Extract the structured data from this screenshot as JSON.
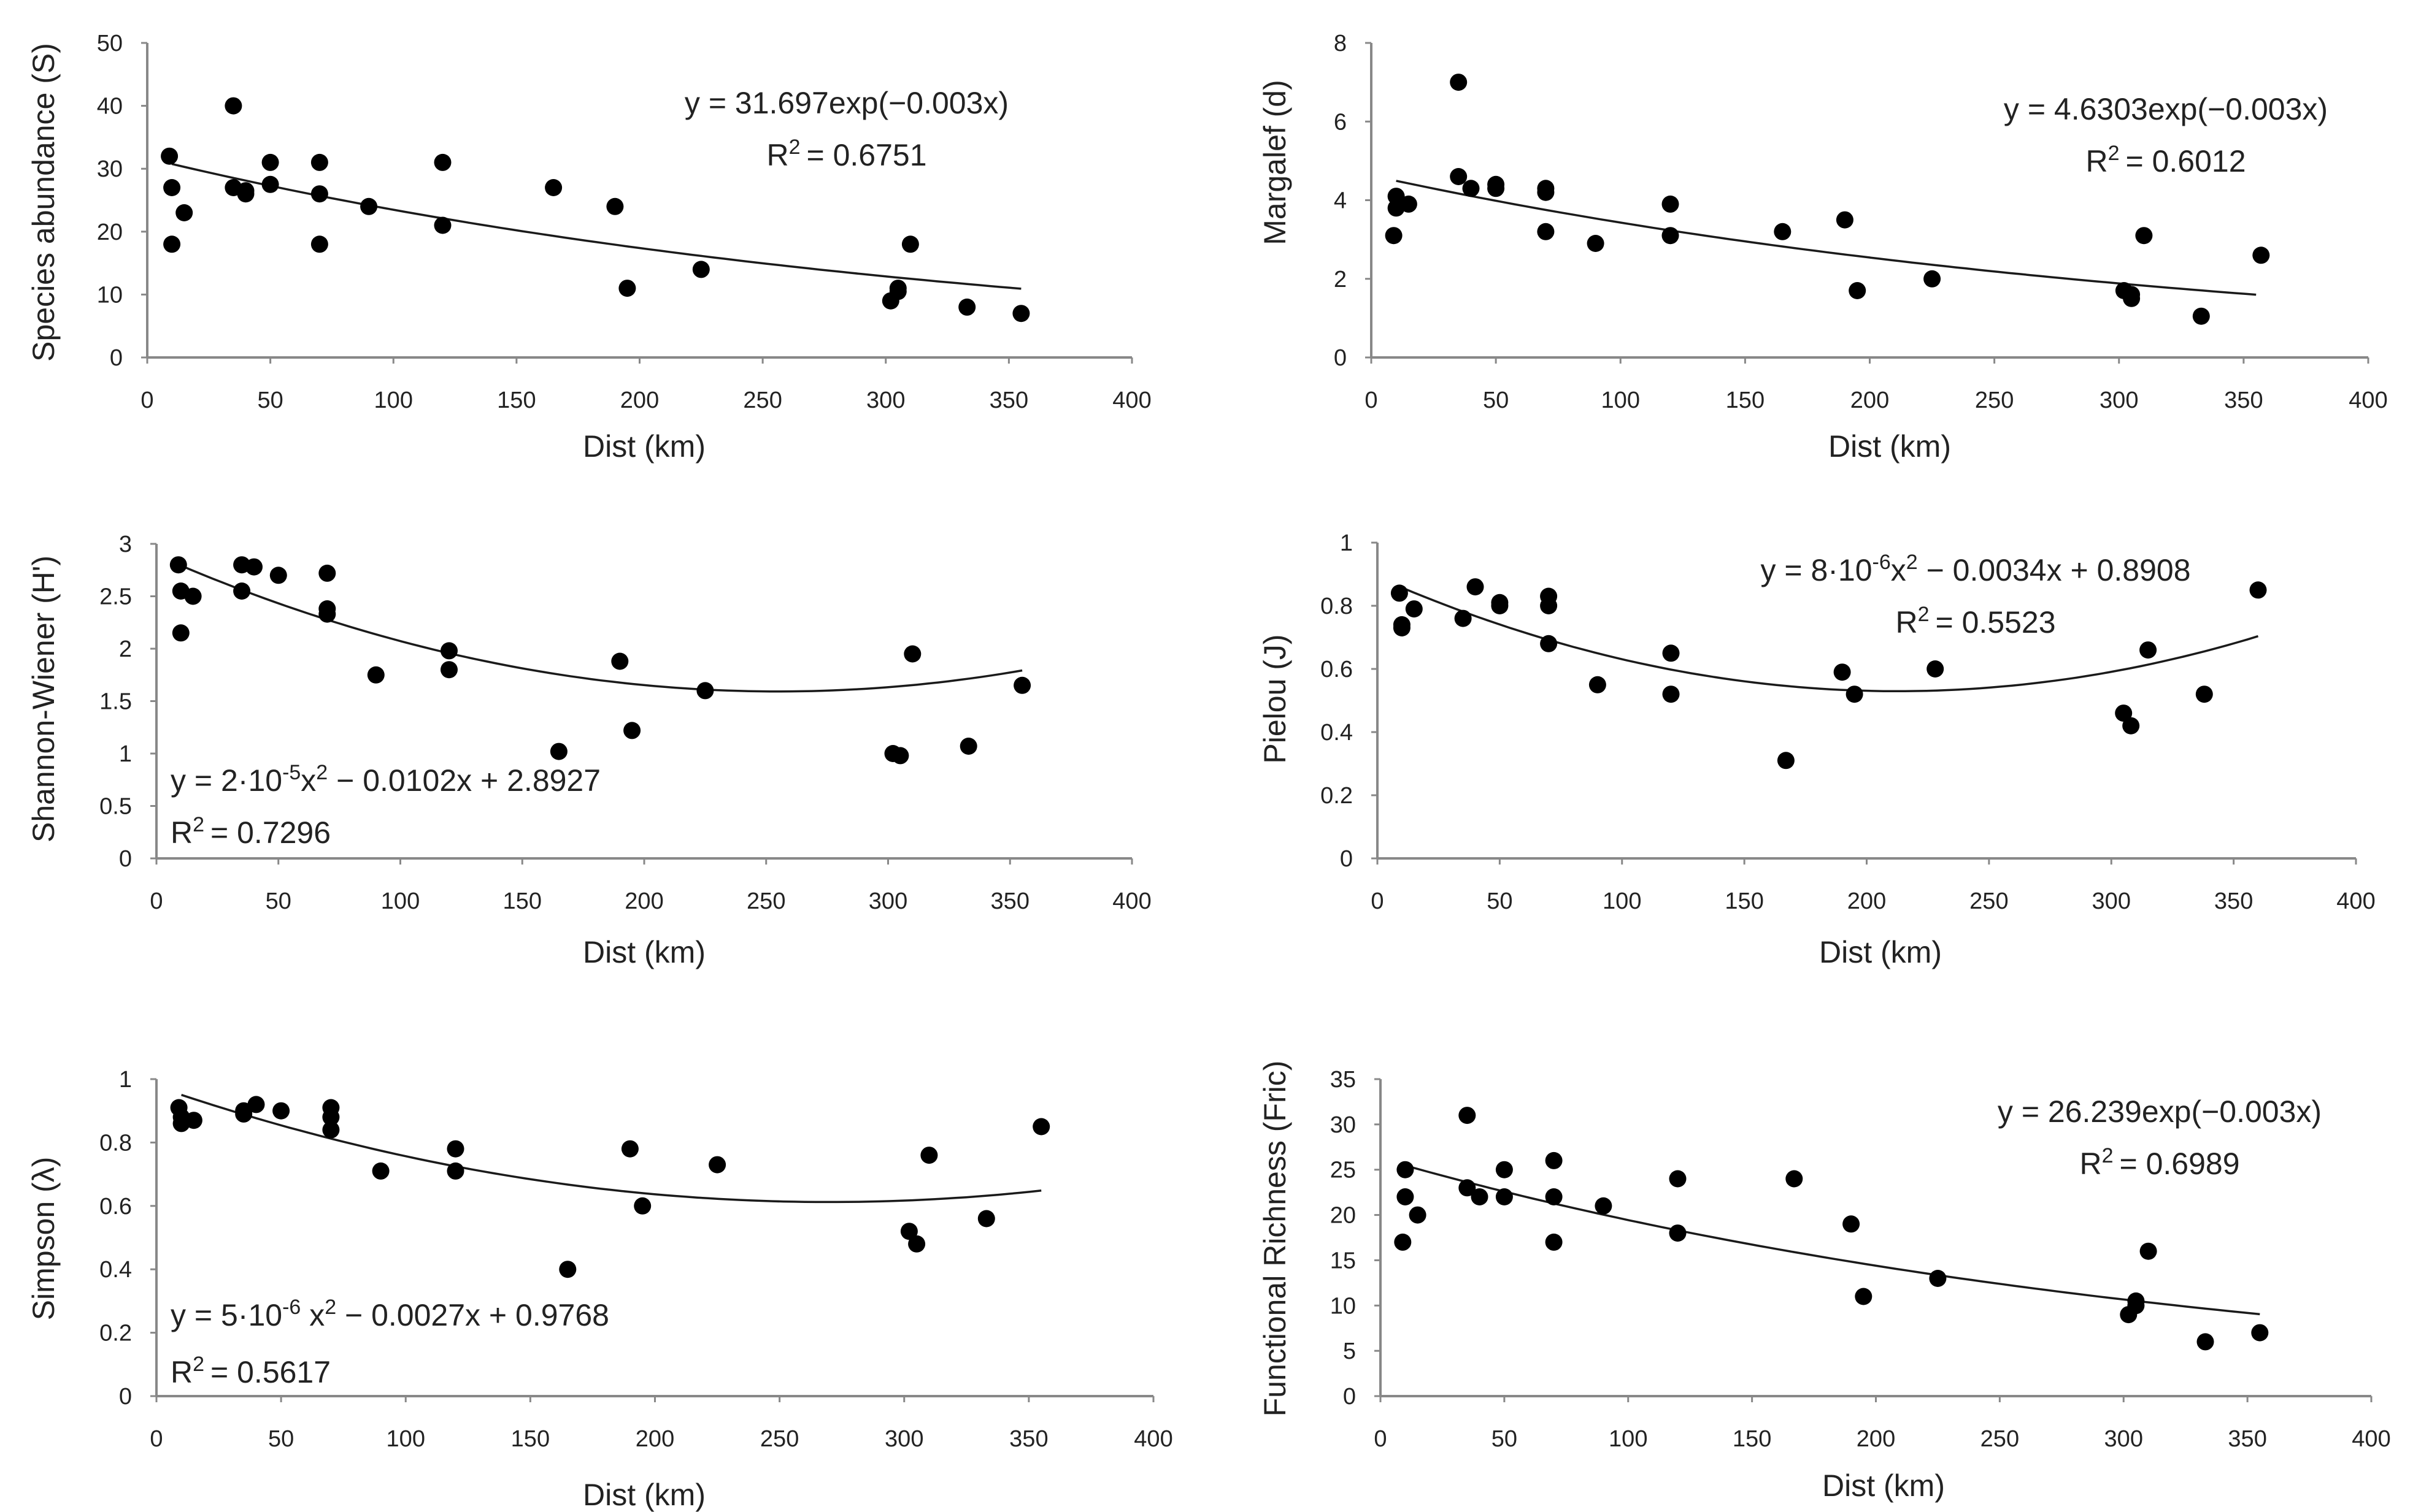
{
  "chart_data": [
    {
      "id": "species",
      "type": "scatter",
      "xlabel": "Dist (km)",
      "ylabel": "Species abundance (S)",
      "xlim": [
        0,
        400
      ],
      "ylim": [
        0,
        50
      ],
      "xticks": [
        0,
        50,
        100,
        150,
        200,
        250,
        300,
        350,
        400
      ],
      "yticks": [
        0,
        10,
        20,
        30,
        40,
        50
      ],
      "tick_decimals": 0,
      "equation": "y = 31.697exp(−0.003x)",
      "r2_label": "R",
      "r2_sup": "2",
      "r2_value": "= 0.6751",
      "fit": {
        "kind": "exp",
        "a": 31.697,
        "b": -0.003,
        "from": 10,
        "to": 355
      },
      "points": [
        [
          9,
          32
        ],
        [
          10,
          27
        ],
        [
          10,
          18
        ],
        [
          15,
          23
        ],
        [
          35,
          40
        ],
        [
          35,
          27
        ],
        [
          40,
          26.5
        ],
        [
          40,
          26
        ],
        [
          50,
          31
        ],
        [
          50,
          27.5
        ],
        [
          70,
          31
        ],
        [
          70,
          26
        ],
        [
          70,
          18
        ],
        [
          90,
          24
        ],
        [
          120,
          31
        ],
        [
          120,
          21
        ],
        [
          165,
          27
        ],
        [
          190,
          24
        ],
        [
          195,
          11
        ],
        [
          225,
          14
        ],
        [
          302,
          9
        ],
        [
          305,
          11
        ],
        [
          305,
          10.5
        ],
        [
          310,
          18
        ],
        [
          333,
          8
        ],
        [
          355,
          7
        ]
      ]
    },
    {
      "id": "margalef",
      "type": "scatter",
      "xlabel": "Dist (km)",
      "ylabel": "Margalef (d)",
      "xlim": [
        0,
        400
      ],
      "ylim": [
        0,
        8
      ],
      "xticks": [
        0,
        50,
        100,
        150,
        200,
        250,
        300,
        350,
        400
      ],
      "yticks": [
        0,
        2,
        4,
        6,
        8
      ],
      "tick_decimals": 0,
      "equation": "y = 4.6303exp(−0.003x)",
      "r2_label": "R",
      "r2_sup": "2",
      "r2_value": "= 0.6012",
      "fit": {
        "kind": "exp",
        "a": 4.6303,
        "b": -0.003,
        "from": 10,
        "to": 355
      },
      "points": [
        [
          9,
          3.1
        ],
        [
          10,
          4.1
        ],
        [
          10,
          3.8
        ],
        [
          15,
          3.9
        ],
        [
          35,
          7
        ],
        [
          35,
          4.6
        ],
        [
          40,
          4.3
        ],
        [
          50,
          4.4
        ],
        [
          50,
          4.3
        ],
        [
          70,
          4.2
        ],
        [
          70,
          4.3
        ],
        [
          70,
          3.2
        ],
        [
          90,
          2.9
        ],
        [
          120,
          3.9
        ],
        [
          120,
          3.1
        ],
        [
          165,
          3.2
        ],
        [
          190,
          3.5
        ],
        [
          195,
          1.7
        ],
        [
          225,
          2.0
        ],
        [
          302,
          1.7
        ],
        [
          305,
          1.6
        ],
        [
          305,
          1.5
        ],
        [
          310,
          3.1
        ],
        [
          333,
          1.05
        ],
        [
          357,
          2.6
        ]
      ]
    },
    {
      "id": "shannon",
      "type": "scatter",
      "xlabel": "Dist (km)",
      "ylabel": "Shannon-Wiener (H')",
      "xlim": [
        0,
        400
      ],
      "ylim": [
        0,
        3
      ],
      "xticks": [
        0,
        50,
        100,
        150,
        200,
        250,
        300,
        350,
        400
      ],
      "yticks": [
        0,
        0.5,
        1,
        1.5,
        2,
        2.5,
        3
      ],
      "tick_decimals": 1,
      "equation_parts": [
        "y = 2·10",
        "-5",
        "x",
        "2",
        " − 0.0102x + 2.8927"
      ],
      "r2_label": "R",
      "r2_sup": "2",
      "r2_value": "= 0.7296",
      "fit": {
        "kind": "poly2",
        "a": 2e-05,
        "b": -0.0102,
        "c": 2.8927,
        "from": 10,
        "to": 355
      },
      "points": [
        [
          9,
          2.8
        ],
        [
          10,
          2.55
        ],
        [
          10,
          2.15
        ],
        [
          15,
          2.5
        ],
        [
          35,
          2.8
        ],
        [
          35,
          2.55
        ],
        [
          40,
          2.78
        ],
        [
          50,
          2.7
        ],
        [
          70,
          2.72
        ],
        [
          70,
          2.38
        ],
        [
          70,
          2.33
        ],
        [
          90,
          1.75
        ],
        [
          120,
          1.98
        ],
        [
          120,
          1.8
        ],
        [
          165,
          1.02
        ],
        [
          190,
          1.88
        ],
        [
          195,
          1.22
        ],
        [
          225,
          1.6
        ],
        [
          302,
          1.0
        ],
        [
          305,
          0.98
        ],
        [
          310,
          1.95
        ],
        [
          333,
          1.07
        ],
        [
          355,
          1.65
        ]
      ]
    },
    {
      "id": "pielou",
      "type": "scatter",
      "xlabel": "Dist (km)",
      "ylabel": "Pielou (J)",
      "xlim": [
        0,
        400
      ],
      "ylim": [
        0,
        1
      ],
      "xticks": [
        0,
        50,
        100,
        150,
        200,
        250,
        300,
        350,
        400
      ],
      "yticks": [
        0,
        0.2,
        0.4,
        0.6,
        0.8,
        1
      ],
      "tick_decimals": 1,
      "equation_parts": [
        "y = 8·10",
        "-6",
        "x",
        "2",
        " − 0.0034x + 0.8908"
      ],
      "r2_label": "R",
      "r2_sup": "2",
      "r2_value": "= 0.5523",
      "fit": {
        "kind": "poly2",
        "a": 8e-06,
        "b": -0.0034,
        "c": 0.8908,
        "from": 10,
        "to": 360
      },
      "points": [
        [
          9,
          0.84
        ],
        [
          10,
          0.74
        ],
        [
          10,
          0.73
        ],
        [
          15,
          0.79
        ],
        [
          35,
          0.76
        ],
        [
          40,
          0.86
        ],
        [
          50,
          0.81
        ],
        [
          50,
          0.8
        ],
        [
          70,
          0.83
        ],
        [
          70,
          0.8
        ],
        [
          70,
          0.68
        ],
        [
          90,
          0.55
        ],
        [
          120,
          0.65
        ],
        [
          120,
          0.52
        ],
        [
          167,
          0.31
        ],
        [
          190,
          0.59
        ],
        [
          195,
          0.52
        ],
        [
          228,
          0.6
        ],
        [
          305,
          0.46
        ],
        [
          308,
          0.42
        ],
        [
          315,
          0.66
        ],
        [
          338,
          0.52
        ],
        [
          360,
          0.85
        ]
      ]
    },
    {
      "id": "simpson",
      "type": "scatter",
      "xlabel": "Dist (km)",
      "ylabel": "Simpson (λ)",
      "xlim": [
        0,
        400
      ],
      "ylim": [
        0,
        1
      ],
      "xticks": [
        0,
        50,
        100,
        150,
        200,
        250,
        300,
        350,
        400
      ],
      "yticks": [
        0,
        0.2,
        0.4,
        0.6,
        0.8,
        1
      ],
      "tick_decimals": 1,
      "equation_parts": [
        "y = 5·10",
        "-6",
        " x",
        "2",
        " − 0.0027x + 0.9768"
      ],
      "r2_label": "R",
      "r2_sup": "2",
      "r2_value": "= 0.5617",
      "fit": {
        "kind": "poly2",
        "a": 5e-06,
        "b": -0.0027,
        "c": 0.9768,
        "from": 10,
        "to": 355
      },
      "points": [
        [
          9,
          0.91
        ],
        [
          10,
          0.88
        ],
        [
          10,
          0.86
        ],
        [
          15,
          0.87
        ],
        [
          35,
          0.9
        ],
        [
          35,
          0.89
        ],
        [
          40,
          0.92
        ],
        [
          50,
          0.9
        ],
        [
          70,
          0.91
        ],
        [
          70,
          0.88
        ],
        [
          70,
          0.84
        ],
        [
          90,
          0.71
        ],
        [
          120,
          0.78
        ],
        [
          120,
          0.71
        ],
        [
          165,
          0.4
        ],
        [
          190,
          0.78
        ],
        [
          195,
          0.6
        ],
        [
          225,
          0.73
        ],
        [
          302,
          0.52
        ],
        [
          305,
          0.48
        ],
        [
          310,
          0.76
        ],
        [
          333,
          0.56
        ],
        [
          355,
          0.85
        ]
      ]
    },
    {
      "id": "fric",
      "type": "scatter",
      "xlabel": "Dist (km)",
      "ylabel": "Functional Richness (Fric)",
      "xlim": [
        0,
        400
      ],
      "ylim": [
        0,
        35
      ],
      "xticks": [
        0,
        50,
        100,
        150,
        200,
        250,
        300,
        350,
        400
      ],
      "yticks": [
        0,
        5,
        10,
        15,
        20,
        25,
        30,
        35
      ],
      "tick_decimals": 0,
      "equation": "y = 26.239exp(−0.003x)",
      "r2_label": "R",
      "r2_sup": "2",
      "r2_value": "= 0.6989",
      "fit": {
        "kind": "exp",
        "a": 26.239,
        "b": -0.003,
        "from": 10,
        "to": 355
      },
      "points": [
        [
          9,
          17
        ],
        [
          10,
          25
        ],
        [
          10,
          22
        ],
        [
          15,
          20
        ],
        [
          35,
          31
        ],
        [
          35,
          23
        ],
        [
          40,
          22
        ],
        [
          50,
          25
        ],
        [
          50,
          22
        ],
        [
          70,
          26
        ],
        [
          70,
          22
        ],
        [
          70,
          17
        ],
        [
          90,
          21
        ],
        [
          120,
          24
        ],
        [
          120,
          18
        ],
        [
          167,
          24
        ],
        [
          190,
          19
        ],
        [
          195,
          11
        ],
        [
          225,
          13
        ],
        [
          302,
          9
        ],
        [
          305,
          10.5
        ],
        [
          305,
          10
        ],
        [
          310,
          16
        ],
        [
          333,
          6
        ],
        [
          355,
          7
        ]
      ]
    }
  ]
}
